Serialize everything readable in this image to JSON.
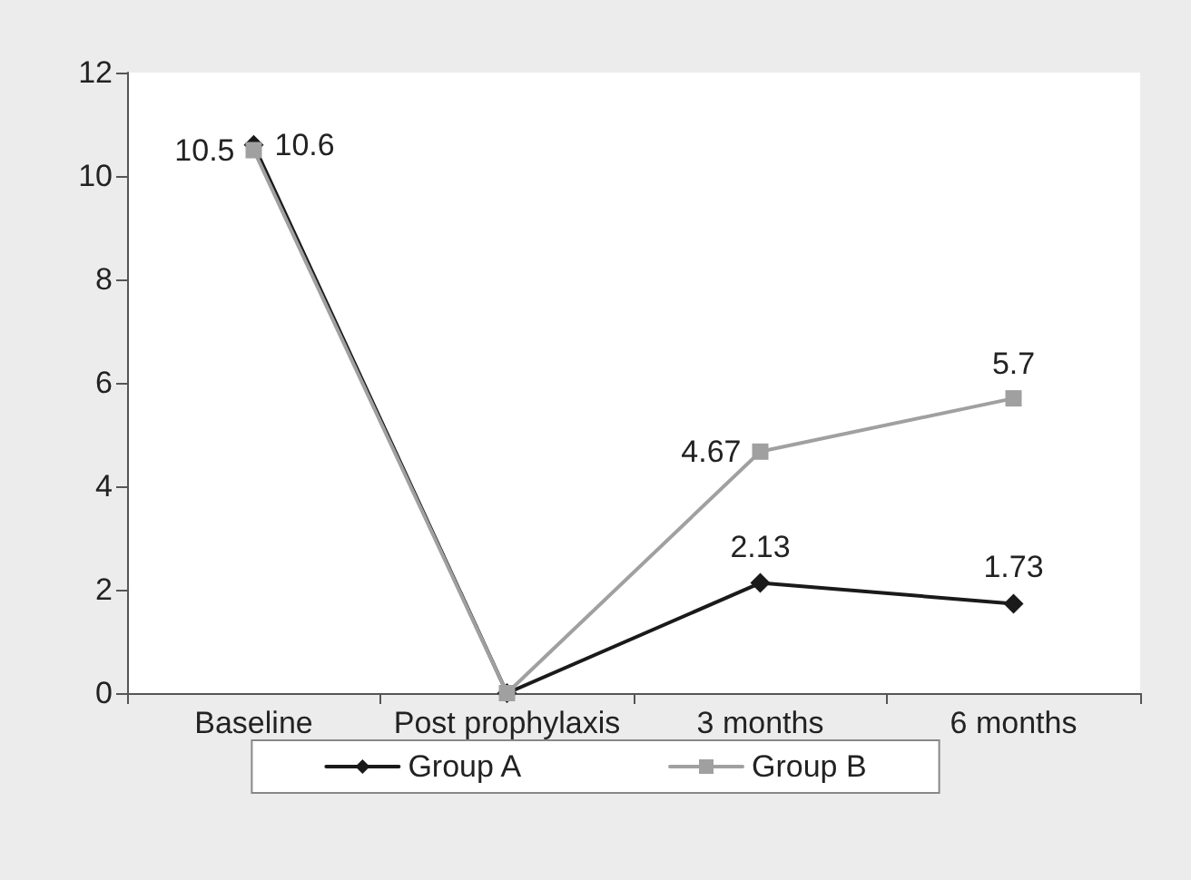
{
  "chart_data": {
    "type": "line",
    "categories": [
      "Baseline",
      "Post prophylaxis",
      "3 months",
      "6 months"
    ],
    "series": [
      {
        "name": "Group A",
        "color": "#1a1a1a",
        "marker": "diamond",
        "values": [
          10.6,
          0,
          2.13,
          1.73
        ],
        "value_labels": [
          "10.6",
          null,
          "2.13",
          "1.73"
        ]
      },
      {
        "name": "Group B",
        "color": "#a0a0a0",
        "marker": "square",
        "values": [
          10.5,
          0,
          4.67,
          5.7
        ],
        "value_labels": [
          "10.5",
          null,
          "4.67",
          "5.7"
        ]
      }
    ],
    "ylim": [
      0,
      12
    ],
    "yticks": [
      0,
      2,
      4,
      6,
      8,
      10,
      12
    ],
    "grid": false,
    "legend": "bottom",
    "line_style": "solid"
  }
}
